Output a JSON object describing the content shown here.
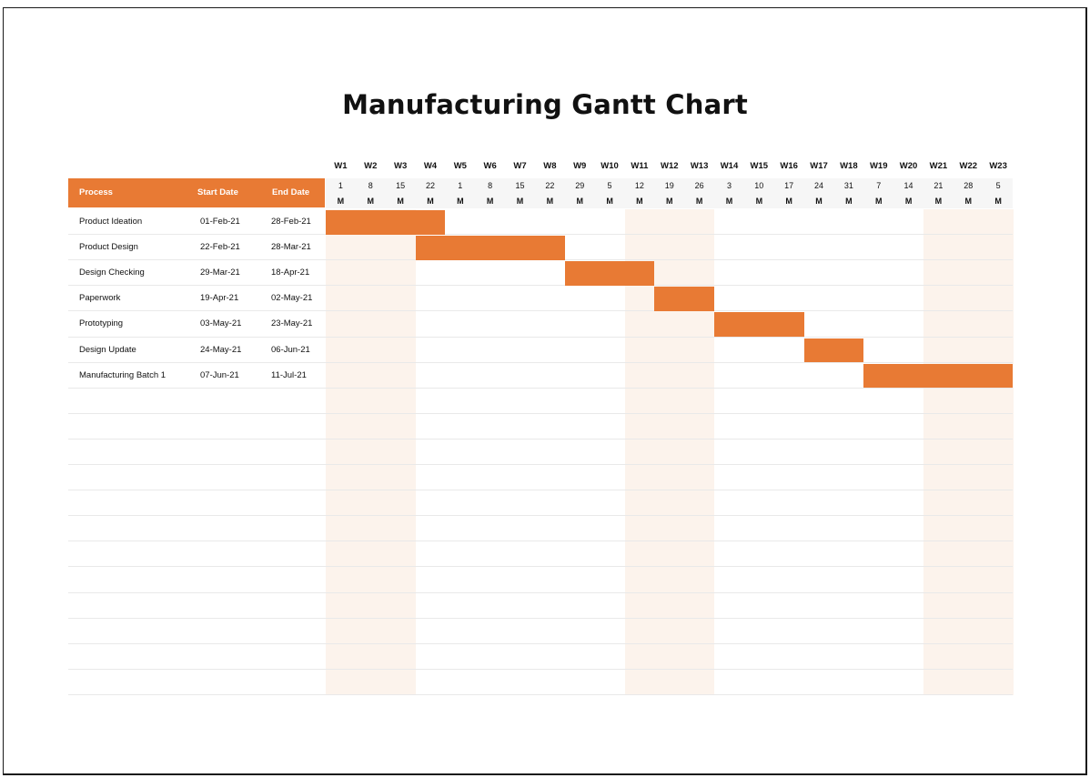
{
  "title": "Manufacturing Gantt Chart",
  "colors": {
    "bar": "#e87a34",
    "header": "#e87a34",
    "shade": "#fcf3ec"
  },
  "table_header": {
    "process": "Process",
    "start": "Start Date",
    "end": "End Date"
  },
  "weeks": [
    {
      "label": "W1",
      "day": "1",
      "dow": "M"
    },
    {
      "label": "W2",
      "day": "8",
      "dow": "M"
    },
    {
      "label": "W3",
      "day": "15",
      "dow": "M"
    },
    {
      "label": "W4",
      "day": "22",
      "dow": "M"
    },
    {
      "label": "W5",
      "day": "1",
      "dow": "M"
    },
    {
      "label": "W6",
      "day": "8",
      "dow": "M"
    },
    {
      "label": "W7",
      "day": "15",
      "dow": "M"
    },
    {
      "label": "W8",
      "day": "22",
      "dow": "M"
    },
    {
      "label": "W9",
      "day": "29",
      "dow": "M"
    },
    {
      "label": "W10",
      "day": "5",
      "dow": "M"
    },
    {
      "label": "W11",
      "day": "12",
      "dow": "M"
    },
    {
      "label": "W12",
      "day": "19",
      "dow": "M"
    },
    {
      "label": "W13",
      "day": "26",
      "dow": "M"
    },
    {
      "label": "W14",
      "day": "3",
      "dow": "M"
    },
    {
      "label": "W15",
      "day": "10",
      "dow": "M"
    },
    {
      "label": "W16",
      "day": "17",
      "dow": "M"
    },
    {
      "label": "W17",
      "day": "24",
      "dow": "M"
    },
    {
      "label": "W18",
      "day": "31",
      "dow": "M"
    },
    {
      "label": "W19",
      "day": "7",
      "dow": "M"
    },
    {
      "label": "W20",
      "day": "14",
      "dow": "M"
    },
    {
      "label": "W21",
      "day": "21",
      "dow": "M"
    },
    {
      "label": "W22",
      "day": "28",
      "dow": "M"
    },
    {
      "label": "W23",
      "day": "5",
      "dow": "M"
    }
  ],
  "chart_data": {
    "type": "gantt",
    "title": "Manufacturing Gantt Chart",
    "x_range": [
      "2021-02-01",
      "2021-07-11"
    ],
    "shaded_weeks": [
      "W1",
      "W2",
      "W3",
      "W11",
      "W12",
      "W13",
      "W21",
      "W22",
      "W23"
    ],
    "tasks": [
      {
        "process": "Product Ideation",
        "start": "01-Feb-21",
        "end": "28-Feb-21"
      },
      {
        "process": "Product Design",
        "start": "22-Feb-21",
        "end": "28-Mar-21"
      },
      {
        "process": "Design Checking",
        "start": "29-Mar-21",
        "end": "18-Apr-21"
      },
      {
        "process": "Paperwork",
        "start": "19-Apr-21",
        "end": "02-May-21"
      },
      {
        "process": "Prototyping",
        "start": "03-May-21",
        "end": "23-May-21"
      },
      {
        "process": "Design Update",
        "start": "24-May-21",
        "end": "06-Jun-21"
      },
      {
        "process": "Manufacturing Batch 1",
        "start": "07-Jun-21",
        "end": "11-Jul-21"
      }
    ]
  }
}
